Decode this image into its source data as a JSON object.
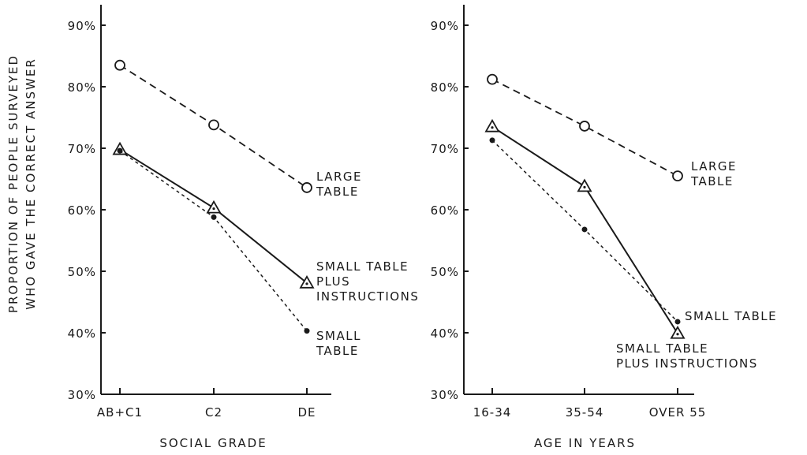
{
  "ylabel": [
    "PROPORTION OF PEOPLE SURVEYED",
    "WHO GAVE THE CORRECT ANSWER"
  ],
  "chart_data": [
    {
      "type": "line",
      "xlabel": "SOCIAL GRADE",
      "categories": [
        "AB+C1",
        "C2",
        "DE"
      ],
      "yticks": [
        "30%",
        "40%",
        "50%",
        "60%",
        "70%",
        "80%",
        "90%"
      ],
      "ylim": [
        30,
        90
      ],
      "grid": false,
      "series": [
        {
          "name": "LARGE TABLE",
          "values": [
            83.5,
            73.8,
            63.6
          ],
          "style": "dashed",
          "marker": "open-circle"
        },
        {
          "name": "SMALL TABLE PLUS INSTRUCTIONS",
          "values": [
            69.8,
            60.3,
            48.1
          ],
          "style": "solid",
          "marker": "open-triangle"
        },
        {
          "name": "SMALL TABLE",
          "values": [
            69.6,
            58.8,
            40.3
          ],
          "style": "dotted",
          "marker": "filled-dot"
        }
      ],
      "annotations": [
        [
          "LARGE",
          "TABLE"
        ],
        [
          "SMALL TABLE",
          "PLUS",
          "INSTRUCTIONS"
        ],
        [
          "SMALL",
          "TABLE"
        ]
      ]
    },
    {
      "type": "line",
      "xlabel": "AGE IN YEARS",
      "categories": [
        "16-34",
        "35-54",
        "OVER 55"
      ],
      "yticks": [
        "30%",
        "40%",
        "50%",
        "60%",
        "70%",
        "80%",
        "90%"
      ],
      "ylim": [
        30,
        90
      ],
      "grid": false,
      "series": [
        {
          "name": "LARGE TABLE",
          "values": [
            81.2,
            73.6,
            65.5
          ],
          "style": "dashed",
          "marker": "open-circle"
        },
        {
          "name": "SMALL TABLE PLUS INSTRUCTIONS",
          "values": [
            73.5,
            63.8,
            39.9
          ],
          "style": "solid",
          "marker": "open-triangle"
        },
        {
          "name": "SMALL TABLE",
          "values": [
            71.3,
            56.8,
            41.8
          ],
          "style": "dotted",
          "marker": "filled-dot"
        }
      ],
      "annotations": [
        [
          "LARGE",
          "TABLE"
        ],
        [
          "SMALL TABLE"
        ],
        [
          "SMALL TABLE",
          "PLUS INSTRUCTIONS"
        ]
      ]
    }
  ]
}
